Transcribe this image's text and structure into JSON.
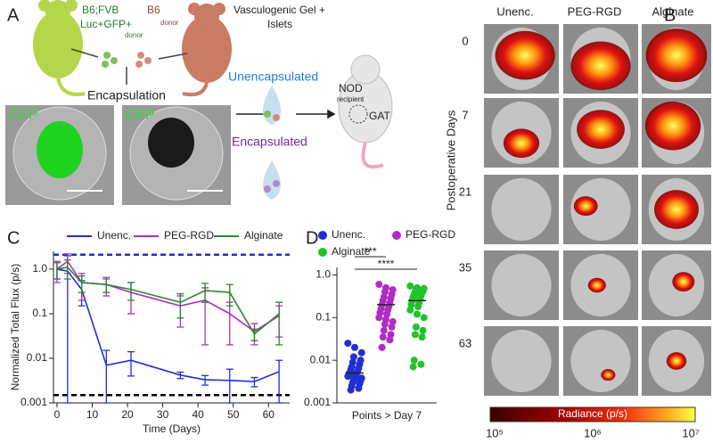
{
  "figure": {
    "letters": [
      "A",
      "B",
      "C",
      "D"
    ],
    "a": {
      "donor1": "B6;FVB",
      "donor1_line2": "Luc+GFP+",
      "donor1_sub": "donor",
      "donor2": "B6",
      "donor2_sub": "donor",
      "gel": "Vasculogenic Gel +",
      "gel_line2": "Islets",
      "encapsulation": "Encapsulation",
      "gfp": [
        "GFP",
        "GFP"
      ],
      "unencapsulated": "Unencapsulated",
      "encapsulated": "Encapsulated",
      "recipient": "NOD",
      "recipient_sub": "recipient",
      "site": "GAT"
    },
    "b": {
      "columns": [
        "Unenc.",
        "PEG-RGD",
        "Alginate"
      ],
      "rows": [
        "0",
        "7",
        "21",
        "35",
        "63"
      ],
      "row_axis": "Postoperative Days",
      "colorbar_label": "Radiance (p/s)",
      "colorbar_ticks": [
        "10⁵",
        "10⁶",
        "10⁷"
      ]
    }
  },
  "chart_data": [
    {
      "type": "line",
      "xlabel": "Time (Days)",
      "ylabel": "Normalized Total Flux (p/s)",
      "log_y": true,
      "x": [
        0,
        3,
        7,
        14,
        21,
        35,
        42,
        49,
        56,
        63
      ],
      "series": [
        {
          "name": "Unenc.",
          "color": "#1f2fd6",
          "values": [
            1.0,
            0.9,
            0.35,
            0.007,
            0.009,
            0.0042,
            0.0033,
            0.0032,
            0.003,
            0.005
          ],
          "errors": [
            0.4,
            1.1,
            0.2,
            0.008,
            0.005,
            0.0007,
            0.0008,
            0.0025,
            0.0007,
            0.004
          ]
        },
        {
          "name": "PEG-RGD",
          "color": "#b12cc4",
          "values": [
            1.0,
            1.5,
            0.5,
            0.45,
            0.3,
            0.15,
            0.2,
            0.1,
            0.04,
            0.09
          ],
          "errors": [
            0.5,
            0.7,
            0.3,
            0.2,
            0.2,
            0.1,
            0.18,
            0.08,
            0.02,
            0.06
          ]
        },
        {
          "name": "Alginate",
          "color": "#2a8a2a",
          "values": [
            1.0,
            1.1,
            0.5,
            0.45,
            0.35,
            0.18,
            0.33,
            0.3,
            0.035,
            0.1
          ],
          "errors": [
            0.4,
            0.5,
            0.2,
            0.15,
            0.15,
            0.1,
            0.15,
            0.15,
            0.01,
            0.08
          ]
        }
      ],
      "reference_lines": [
        {
          "value": 2.1,
          "color": "#1f2fd6"
        },
        {
          "value": 0.0015,
          "color": "#000000"
        }
      ],
      "xlim": [
        -1,
        66
      ],
      "xticks": [
        0,
        10,
        20,
        30,
        40,
        50,
        60
      ],
      "ylim": [
        0.001,
        2.5
      ],
      "yticks": [
        0.001,
        0.01,
        0.1,
        {
          "value": 1,
          "label": "1.0"
        }
      ]
    },
    {
      "type": "dot",
      "xlabel": "Points > Day 7",
      "log_y": true,
      "series": [
        {
          "name": "Unenc.",
          "color": "#1f2fd6",
          "mean": 0.005,
          "values": [
            0.025,
            0.02,
            0.015,
            0.012,
            0.01,
            0.009,
            0.008,
            0.007,
            0.0065,
            0.006,
            0.0055,
            0.005,
            0.005,
            0.0048,
            0.0045,
            0.0042,
            0.004,
            0.0038,
            0.0035,
            0.0033,
            0.003,
            0.0028,
            0.0025,
            0.0022,
            0.002
          ]
        },
        {
          "name": "PEG-RGD",
          "color": "#b12cc4",
          "mean": 0.2,
          "values": [
            0.6,
            0.5,
            0.45,
            0.4,
            0.35,
            0.3,
            0.28,
            0.25,
            0.22,
            0.2,
            0.18,
            0.16,
            0.15,
            0.13,
            0.12,
            0.1,
            0.09,
            0.08,
            0.07,
            0.06,
            0.05,
            0.04,
            0.035,
            0.03,
            0.02
          ]
        },
        {
          "name": "Alginate",
          "color": "#22c22a",
          "mean": 0.25,
          "values": [
            0.55,
            0.5,
            0.48,
            0.45,
            0.42,
            0.4,
            0.38,
            0.35,
            0.33,
            0.3,
            0.28,
            0.25,
            0.22,
            0.2,
            0.18,
            0.15,
            0.12,
            0.1,
            0.06,
            0.05,
            0.04,
            0.035,
            0.01,
            0.008,
            0.007
          ]
        }
      ],
      "significance": [
        "***",
        "****"
      ],
      "ylim": [
        0.001,
        1.5
      ],
      "yticks": [
        0.001,
        0.01,
        0.1,
        {
          "value": 1,
          "label": "1.0"
        }
      ]
    }
  ]
}
